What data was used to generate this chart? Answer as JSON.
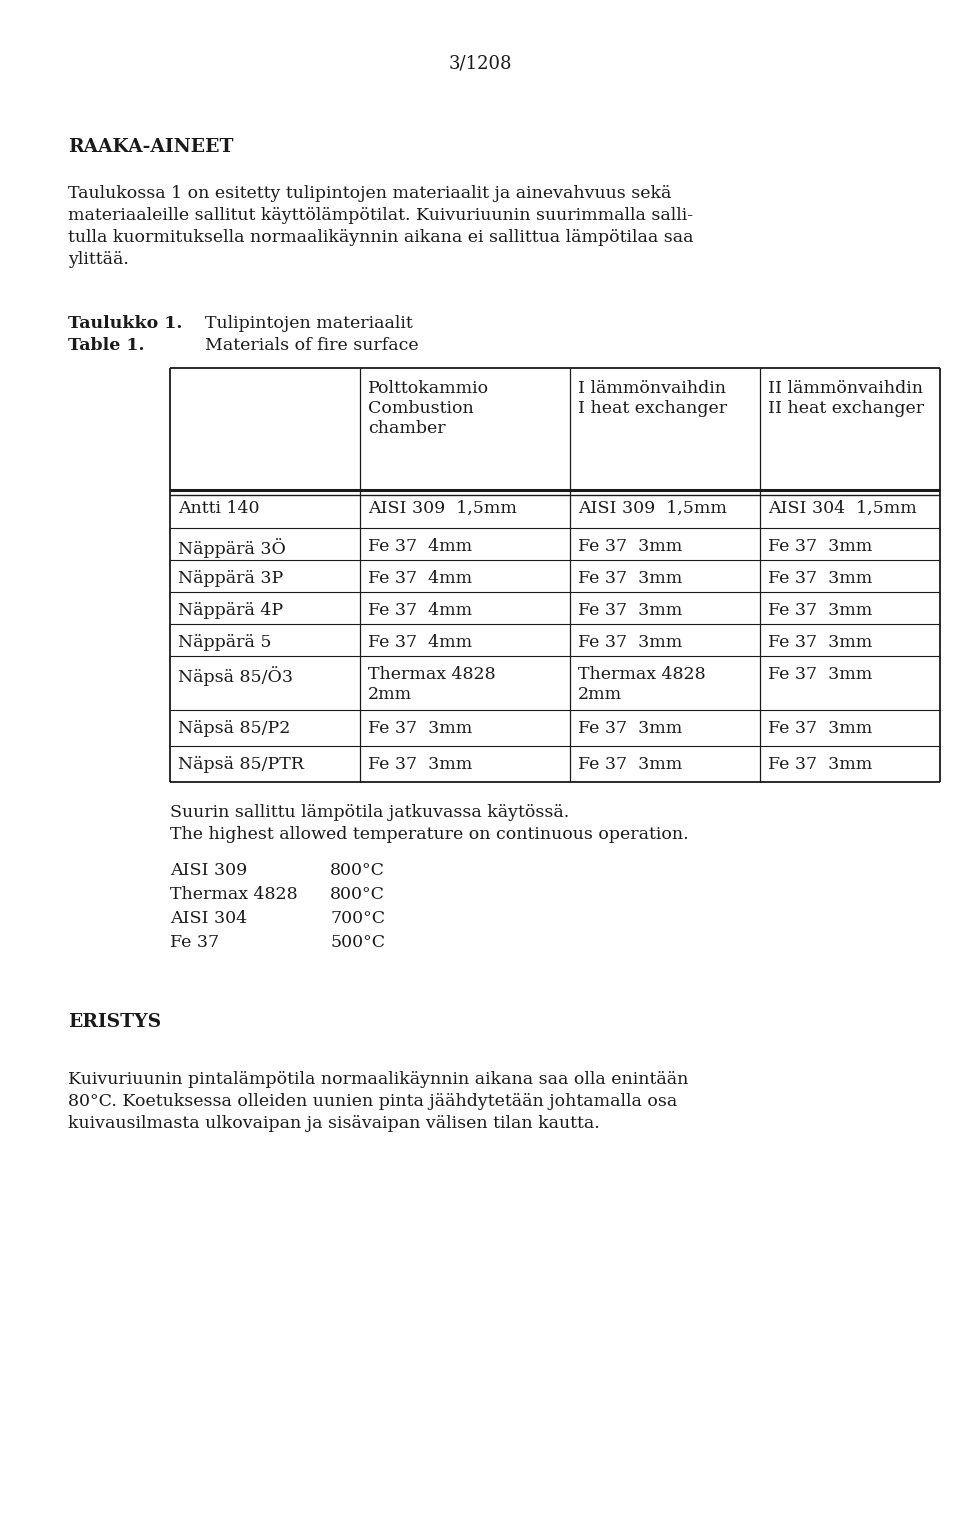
{
  "page_number": "3/1208",
  "section_title": "RAAKA-AINEET",
  "intro_line1": "Taulukossa 1 on esitetty tulipintojen materiaalit ja ainevahvuus sekä",
  "intro_line2": "materiaaleille sallitut käyttölämpötilat. Kuivuriuunin suurimmalla salli-",
  "intro_line3": "tulla kuormituksella normaalikäynnin aikana ei sallittua lämpötilaa saa",
  "intro_line4": "ylittää.",
  "table_label_fi": "Taulukko 1.",
  "table_label_en": "Table 1.",
  "table_title_fi": "Tulipintojen materiaalit",
  "table_title_en": "Materials of fire surface",
  "col_header1_line1": "Polttokammio",
  "col_header1_line2": "Combustion",
  "col_header1_line3": "chamber",
  "col_header2_line1": "I lämmönvaihdin",
  "col_header2_line2": "I heat exchanger",
  "col_header3_line1": "II lämmönvaihdin",
  "col_header3_line2": "II heat exchanger",
  "row_labels": [
    "Antti 140",
    "Näppärä 3Ö",
    "Näppärä 3P",
    "Näppärä 4P",
    "Näppärä 5",
    "Näpsä 85/Ö3",
    "Näpsä 85/P2",
    "Näpsä 85/PTR"
  ],
  "table_data": [
    [
      "AISI 309  1,5mm",
      "AISI 309  1,5mm",
      "AISI 304  1,5mm"
    ],
    [
      "Fe 37  4mm",
      "Fe 37  3mm",
      "Fe 37  3mm"
    ],
    [
      "Fe 37  4mm",
      "Fe 37  3mm",
      "Fe 37  3mm"
    ],
    [
      "Fe 37  4mm",
      "Fe 37  3mm",
      "Fe 37  3mm"
    ],
    [
      "Fe 37  4mm",
      "Fe 37  3mm",
      "Fe 37  3mm"
    ],
    [
      "Thermax 4828\n2mm",
      "Thermax 4828\n2mm",
      "Fe 37  3mm"
    ],
    [
      "Fe 37  3mm",
      "Fe 37  3mm",
      "Fe 37  3mm"
    ],
    [
      "Fe 37  3mm",
      "Fe 37  3mm",
      "Fe 37  3mm"
    ]
  ],
  "temp_text1": "Suurin sallittu lämpötila jatkuvassa käytössä.",
  "temp_text2": "The highest allowed temperature on continuous operation.",
  "temp_data": [
    [
      "AISI 309",
      "800°C"
    ],
    [
      "Thermax 4828",
      "800°C"
    ],
    [
      "AISI 304",
      "700°C"
    ],
    [
      "Fe 37",
      "500°C"
    ]
  ],
  "section2_title": "ERISTYS",
  "section2_line1": "Kuivuriuunin pintalämpötila normaalikäynnin aikana saa olla enintään",
  "section2_line2": "80°C. Koetuksessa olleiden uunien pinta jäähdytetään johtamalla osa",
  "section2_line3": "kuivausilmasta ulkovaipan ja sisävaipan välisen tilan kautta.",
  "bg_color": "#ffffff",
  "text_color": "#1a1a1a"
}
